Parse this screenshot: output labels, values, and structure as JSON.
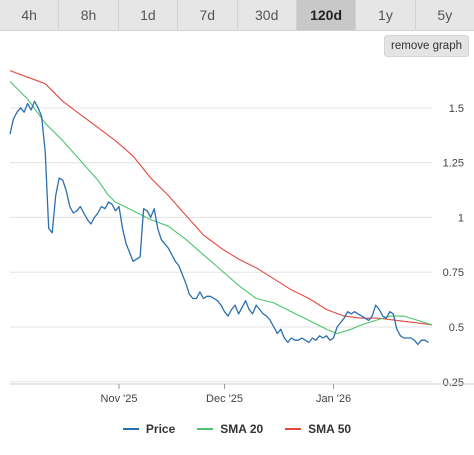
{
  "tabs": [
    {
      "label": "4h"
    },
    {
      "label": "8h"
    },
    {
      "label": "1d"
    },
    {
      "label": "7d"
    },
    {
      "label": "30d"
    },
    {
      "label": "120d",
      "active": true
    },
    {
      "label": "1y"
    },
    {
      "label": "5y"
    }
  ],
  "remove_graph_label": "remove graph",
  "colors": {
    "price": "#2a6fb0",
    "sma20": "#4cc46e",
    "sma50": "#e34a40",
    "grid": "#e3e3e3"
  },
  "chart_data": {
    "type": "line",
    "title": "",
    "xlabel": "",
    "ylabel": "",
    "ylim": [
      0.24,
      1.7
    ],
    "yticks": [
      0.25,
      0.5,
      0.75,
      1,
      1.25,
      1.5
    ],
    "ytick_labels": [
      "0.25",
      "0.5",
      "0.75",
      "1",
      "1.25",
      "1.5"
    ],
    "xlim": [
      0,
      120
    ],
    "xticks": [
      {
        "x": 31,
        "label": "Nov '25"
      },
      {
        "x": 61,
        "label": "Dec '25"
      },
      {
        "x": 92,
        "label": "Jan '26"
      }
    ],
    "legend_position": "bottom",
    "series": [
      {
        "name": "Price",
        "color_key": "price",
        "points": [
          [
            0,
            1.38
          ],
          [
            1,
            1.45
          ],
          [
            2,
            1.48
          ],
          [
            3,
            1.5
          ],
          [
            4,
            1.48
          ],
          [
            5,
            1.52
          ],
          [
            6,
            1.49
          ],
          [
            7,
            1.53
          ],
          [
            8,
            1.5
          ],
          [
            9,
            1.46
          ],
          [
            10,
            1.3
          ],
          [
            11,
            0.95
          ],
          [
            12,
            0.93
          ],
          [
            13,
            1.1
          ],
          [
            14,
            1.18
          ],
          [
            15,
            1.17
          ],
          [
            16,
            1.12
          ],
          [
            17,
            1.05
          ],
          [
            18,
            1.02
          ],
          [
            19,
            1.03
          ],
          [
            20,
            1.05
          ],
          [
            21,
            1.02
          ],
          [
            22,
            0.99
          ],
          [
            23,
            0.97
          ],
          [
            24,
            1.0
          ],
          [
            25,
            1.02
          ],
          [
            26,
            1.05
          ],
          [
            27,
            1.04
          ],
          [
            28,
            1.07
          ],
          [
            29,
            1.06
          ],
          [
            30,
            1.03
          ],
          [
            31,
            1.05
          ],
          [
            32,
            0.95
          ],
          [
            33,
            0.88
          ],
          [
            34,
            0.84
          ],
          [
            35,
            0.8
          ],
          [
            36,
            0.81
          ],
          [
            37,
            0.82
          ],
          [
            38,
            1.04
          ],
          [
            39,
            1.03
          ],
          [
            40,
            1.0
          ],
          [
            41,
            1.04
          ],
          [
            42,
            0.95
          ],
          [
            43,
            0.9
          ],
          [
            44,
            0.88
          ],
          [
            45,
            0.86
          ],
          [
            46,
            0.83
          ],
          [
            47,
            0.8
          ],
          [
            48,
            0.78
          ],
          [
            49,
            0.74
          ],
          [
            50,
            0.7
          ],
          [
            51,
            0.65
          ],
          [
            52,
            0.63
          ],
          [
            53,
            0.63
          ],
          [
            54,
            0.66
          ],
          [
            55,
            0.63
          ],
          [
            56,
            0.64
          ],
          [
            57,
            0.64
          ],
          [
            58,
            0.63
          ],
          [
            59,
            0.62
          ],
          [
            60,
            0.6
          ],
          [
            61,
            0.57
          ],
          [
            62,
            0.55
          ],
          [
            63,
            0.58
          ],
          [
            64,
            0.6
          ],
          [
            65,
            0.56
          ],
          [
            66,
            0.59
          ],
          [
            67,
            0.62
          ],
          [
            68,
            0.58
          ],
          [
            69,
            0.56
          ],
          [
            70,
            0.6
          ],
          [
            71,
            0.58
          ],
          [
            72,
            0.56
          ],
          [
            73,
            0.55
          ],
          [
            74,
            0.53
          ],
          [
            75,
            0.5
          ],
          [
            76,
            0.47
          ],
          [
            77,
            0.49
          ],
          [
            78,
            0.45
          ],
          [
            79,
            0.43
          ],
          [
            80,
            0.45
          ],
          [
            81,
            0.44
          ],
          [
            82,
            0.44
          ],
          [
            83,
            0.45
          ],
          [
            84,
            0.44
          ],
          [
            85,
            0.43
          ],
          [
            86,
            0.45
          ],
          [
            87,
            0.44
          ],
          [
            88,
            0.46
          ],
          [
            89,
            0.45
          ],
          [
            90,
            0.46
          ],
          [
            91,
            0.44
          ],
          [
            92,
            0.45
          ],
          [
            93,
            0.5
          ],
          [
            94,
            0.52
          ],
          [
            95,
            0.54
          ],
          [
            96,
            0.57
          ],
          [
            97,
            0.56
          ],
          [
            98,
            0.57
          ],
          [
            99,
            0.56
          ],
          [
            100,
            0.55
          ],
          [
            101,
            0.54
          ],
          [
            102,
            0.53
          ],
          [
            103,
            0.55
          ],
          [
            104,
            0.6
          ],
          [
            105,
            0.58
          ],
          [
            106,
            0.55
          ],
          [
            107,
            0.54
          ],
          [
            108,
            0.57
          ],
          [
            109,
            0.56
          ],
          [
            110,
            0.49
          ],
          [
            111,
            0.46
          ],
          [
            112,
            0.45
          ],
          [
            113,
            0.45
          ],
          [
            114,
            0.45
          ],
          [
            115,
            0.44
          ],
          [
            116,
            0.42
          ],
          [
            117,
            0.44
          ],
          [
            118,
            0.44
          ],
          [
            119,
            0.43
          ]
        ]
      },
      {
        "name": "SMA 20",
        "color_key": "sma20",
        "points": [
          [
            0,
            1.62
          ],
          [
            5,
            1.54
          ],
          [
            10,
            1.43
          ],
          [
            15,
            1.35
          ],
          [
            20,
            1.26
          ],
          [
            25,
            1.17
          ],
          [
            28,
            1.1
          ],
          [
            30,
            1.07
          ],
          [
            35,
            1.03
          ],
          [
            40,
            0.99
          ],
          [
            45,
            0.96
          ],
          [
            50,
            0.9
          ],
          [
            55,
            0.83
          ],
          [
            60,
            0.76
          ],
          [
            65,
            0.69
          ],
          [
            70,
            0.63
          ],
          [
            75,
            0.61
          ],
          [
            80,
            0.57
          ],
          [
            85,
            0.53
          ],
          [
            90,
            0.49
          ],
          [
            93,
            0.47
          ],
          [
            97,
            0.49
          ],
          [
            100,
            0.51
          ],
          [
            104,
            0.53
          ],
          [
            108,
            0.55
          ],
          [
            112,
            0.55
          ],
          [
            116,
            0.53
          ],
          [
            120,
            0.51
          ]
        ]
      },
      {
        "name": "SMA 50",
        "color_key": "sma50",
        "points": [
          [
            0,
            1.67
          ],
          [
            5,
            1.64
          ],
          [
            10,
            1.61
          ],
          [
            15,
            1.53
          ],
          [
            20,
            1.47
          ],
          [
            25,
            1.41
          ],
          [
            30,
            1.35
          ],
          [
            35,
            1.28
          ],
          [
            40,
            1.18
          ],
          [
            45,
            1.1
          ],
          [
            50,
            1.01
          ],
          [
            55,
            0.92
          ],
          [
            60,
            0.86
          ],
          [
            65,
            0.81
          ],
          [
            70,
            0.77
          ],
          [
            75,
            0.72
          ],
          [
            80,
            0.67
          ],
          [
            85,
            0.63
          ],
          [
            90,
            0.58
          ],
          [
            95,
            0.55
          ],
          [
            100,
            0.54
          ],
          [
            105,
            0.54
          ],
          [
            110,
            0.53
          ],
          [
            115,
            0.52
          ],
          [
            120,
            0.51
          ]
        ]
      }
    ]
  }
}
